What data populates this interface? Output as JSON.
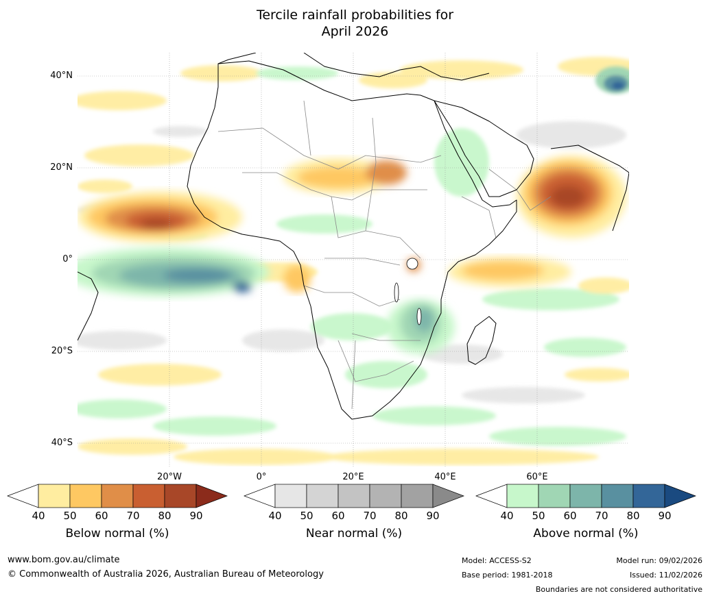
{
  "title": {
    "line1": "Tercile rainfall probabilities for",
    "line2": "April 2026"
  },
  "map": {
    "lat_labels": [
      "40°N",
      "20°N",
      "0°",
      "20°S",
      "40°S"
    ],
    "lon_labels": [
      "20°W",
      "0°",
      "20°E",
      "40°E",
      "60°E"
    ]
  },
  "colorbars": [
    {
      "label": "Below normal (%)",
      "ticks": [
        "40",
        "50",
        "60",
        "70",
        "80",
        "90"
      ],
      "colors": [
        "#ffffff",
        "#ffeda0",
        "#fec862",
        "#e08e48",
        "#c95f31",
        "#a84728",
        "#8b2b1b"
      ]
    },
    {
      "label": "Near normal (%)",
      "ticks": [
        "40",
        "50",
        "60",
        "70",
        "80",
        "90"
      ],
      "colors": [
        "#ffffff",
        "#e6e6e6",
        "#d4d4d4",
        "#c3c3c3",
        "#b3b3b3",
        "#a2a2a2",
        "#8a8a8a"
      ]
    },
    {
      "label": "Above normal (%)",
      "ticks": [
        "40",
        "50",
        "60",
        "70",
        "80",
        "90"
      ],
      "colors": [
        "#ffffff",
        "#c7f7cb",
        "#a0d6b4",
        "#7db5aa",
        "#5990a0",
        "#336698",
        "#1a4a80"
      ]
    }
  ],
  "footer": {
    "url": "www.bom.gov.au/climate",
    "copyright": "© Commonwealth of Australia 2026, Australian Bureau of Meteorology",
    "model": "Model: ACCESS-S2",
    "base_period": "Base period: 1981-2018",
    "model_run": "Model run: 09/02/2026",
    "issued": "Issued: 11/02/2026",
    "disclaimer": "Boundaries are not considered authoritative"
  }
}
